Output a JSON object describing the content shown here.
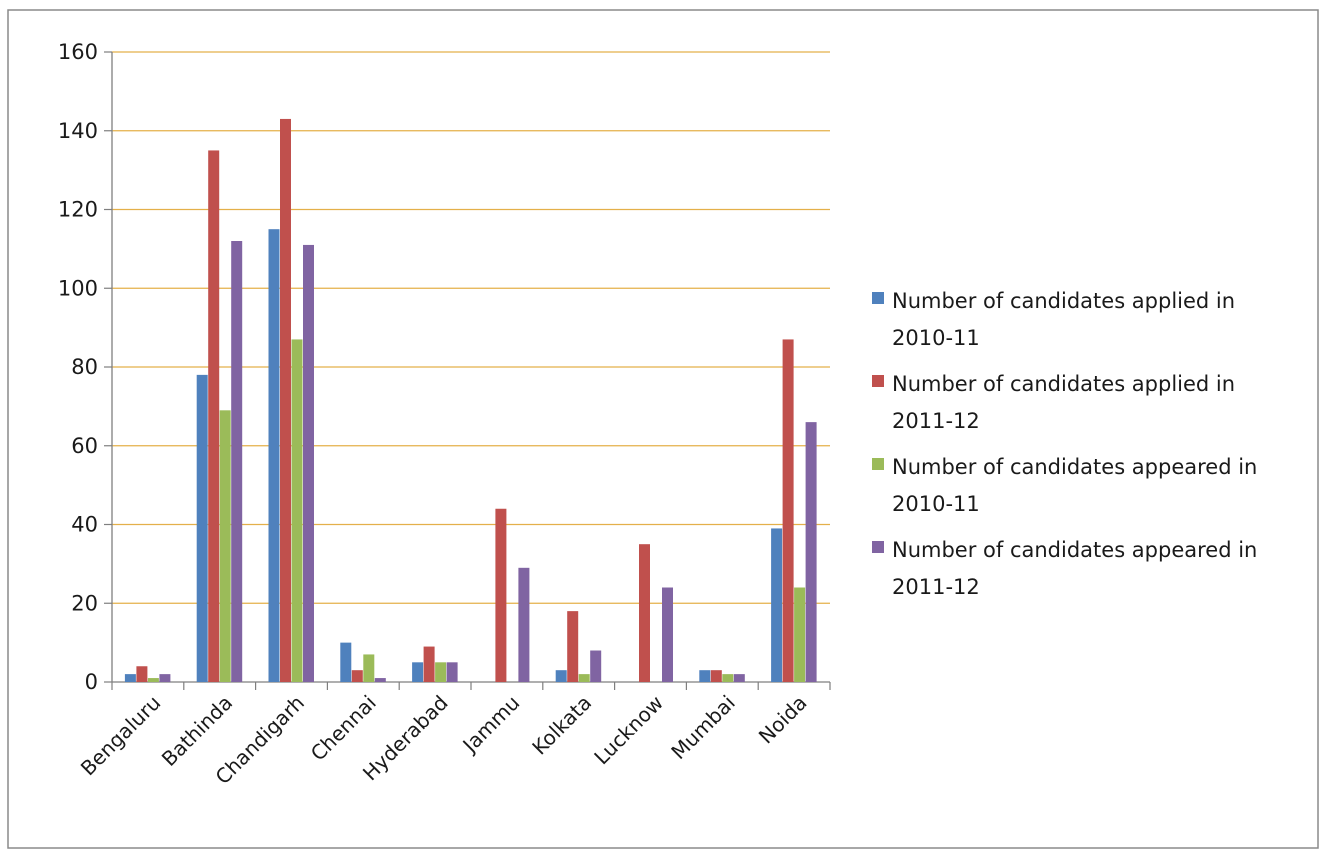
{
  "chart_data": {
    "type": "bar",
    "categories": [
      "Bengaluru",
      "Bathinda",
      "Chandigarh",
      "Chennai",
      "Hyderabad",
      "Jammu",
      "Kolkata",
      "Lucknow",
      "Mumbai",
      "Noida"
    ],
    "series": [
      {
        "name": "Number of candidates applied in 2010-11",
        "color": "#4f81bd",
        "values": [
          2,
          78,
          115,
          10,
          5,
          0,
          3,
          0,
          3,
          39
        ]
      },
      {
        "name": "Number of candidates applied in 2011-12",
        "color": "#c0504d",
        "values": [
          4,
          135,
          143,
          3,
          9,
          44,
          18,
          35,
          3,
          87
        ]
      },
      {
        "name": "Number of candidates appeared in 2010-11",
        "color": "#9bbb59",
        "values": [
          1,
          69,
          87,
          7,
          5,
          0,
          2,
          0,
          2,
          24
        ]
      },
      {
        "name": "Number of candidates appeared in 2011-12",
        "color": "#8064a2",
        "values": [
          2,
          112,
          111,
          1,
          5,
          29,
          8,
          24,
          2,
          66
        ]
      }
    ],
    "yticks": [
      "0",
      "20",
      "40",
      "60",
      "80",
      "100",
      "120",
      "140",
      "160"
    ],
    "ylim": [
      0,
      160
    ],
    "grid": true,
    "legend_position": "right",
    "gridline_color": "#e4b04a"
  }
}
